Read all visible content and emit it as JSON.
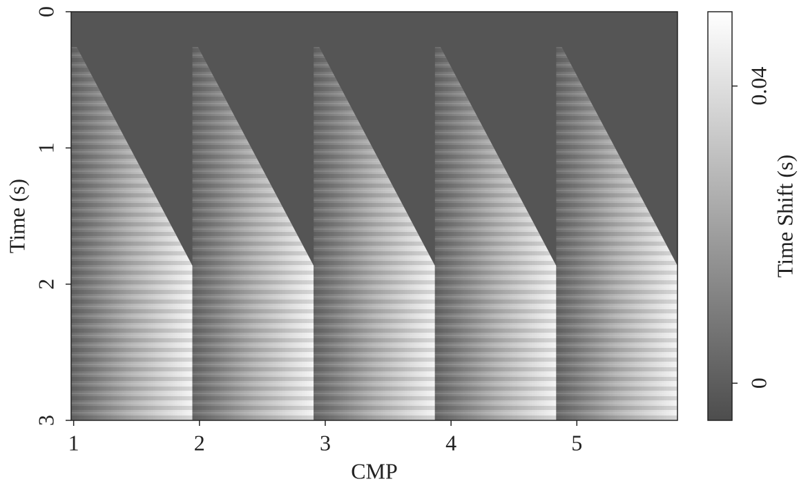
{
  "chart_data": {
    "type": "image",
    "xlabel": "CMP",
    "ylabel": "Time (s)",
    "xlim": [
      0.98,
      5.8
    ],
    "xticks": [
      1,
      2,
      3,
      4,
      5
    ],
    "ylim": [
      0,
      3
    ],
    "yticks": [
      0,
      1,
      2,
      3
    ],
    "y_inverted": true,
    "background": "#555555",
    "colorbar": {
      "label": "Time Shift (s)",
      "lim": [
        -0.005,
        0.05
      ],
      "ticks": [
        0,
        0.04
      ],
      "colors": [
        "#4d4d4d",
        "#ffffff"
      ]
    }
  }
}
